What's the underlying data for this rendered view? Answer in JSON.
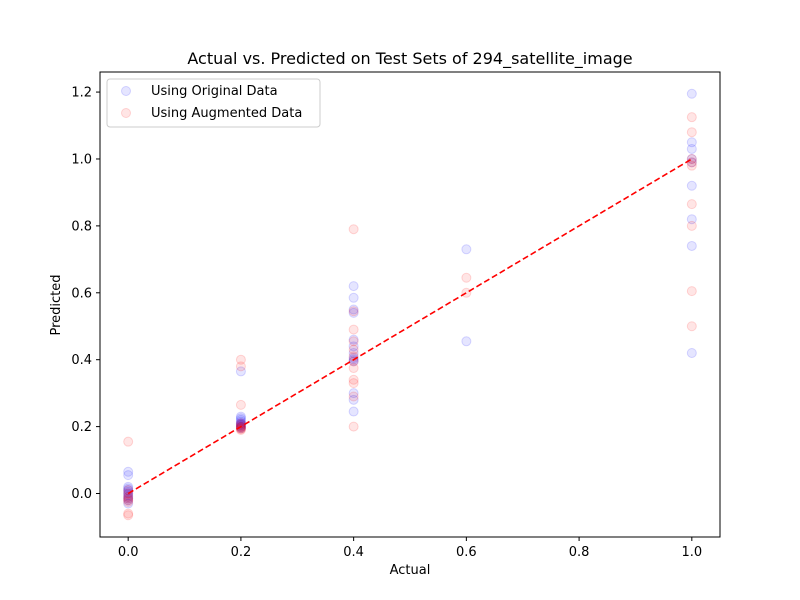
{
  "chart_data": {
    "type": "scatter",
    "title": "Actual vs. Predicted on Test Sets of 294_satellite_image",
    "xlabel": "Actual",
    "ylabel": "Predicted",
    "xlim": [
      -0.05,
      1.05
    ],
    "ylim": [
      -0.13,
      1.26
    ],
    "x_ticks": [
      "0.0",
      "0.2",
      "0.4",
      "0.6",
      "0.8",
      "1.0"
    ],
    "x_tick_values": [
      0.0,
      0.2,
      0.4,
      0.6,
      0.8,
      1.0
    ],
    "y_ticks": [
      "0.0",
      "0.2",
      "0.4",
      "0.6",
      "0.8",
      "1.0",
      "1.2"
    ],
    "y_tick_values": [
      0.0,
      0.2,
      0.4,
      0.6,
      0.8,
      1.0,
      1.2
    ],
    "grid": false,
    "legend_position": "top-left",
    "reference_line": {
      "x": [
        0.0,
        1.0
      ],
      "y": [
        0.0,
        1.0
      ],
      "color": "#ff0000",
      "style": "dashed"
    },
    "series": [
      {
        "name": "Using Original Data",
        "color": "#0000ff",
        "points": [
          [
            0.0,
            0.065
          ],
          [
            0.0,
            0.055
          ],
          [
            0.0,
            0.02
          ],
          [
            0.0,
            0.015
          ],
          [
            0.0,
            0.01
          ],
          [
            0.0,
            0.005
          ],
          [
            0.0,
            0.0
          ],
          [
            0.0,
            -0.005
          ],
          [
            0.0,
            -0.01
          ],
          [
            0.0,
            -0.015
          ],
          [
            0.0,
            -0.02
          ],
          [
            0.0,
            -0.03
          ],
          [
            0.2,
            0.365
          ],
          [
            0.2,
            0.23
          ],
          [
            0.2,
            0.225
          ],
          [
            0.2,
            0.22
          ],
          [
            0.2,
            0.215
          ],
          [
            0.2,
            0.21
          ],
          [
            0.2,
            0.208
          ],
          [
            0.2,
            0.205
          ],
          [
            0.2,
            0.203
          ],
          [
            0.2,
            0.2
          ],
          [
            0.2,
            0.198
          ],
          [
            0.2,
            0.195
          ],
          [
            0.4,
            0.62
          ],
          [
            0.4,
            0.585
          ],
          [
            0.4,
            0.55
          ],
          [
            0.4,
            0.54
          ],
          [
            0.4,
            0.46
          ],
          [
            0.4,
            0.44
          ],
          [
            0.4,
            0.42
          ],
          [
            0.4,
            0.405
          ],
          [
            0.4,
            0.4
          ],
          [
            0.4,
            0.395
          ],
          [
            0.4,
            0.3
          ],
          [
            0.4,
            0.28
          ],
          [
            0.4,
            0.245
          ],
          [
            0.6,
            0.73
          ],
          [
            0.6,
            0.455
          ],
          [
            1.0,
            1.195
          ],
          [
            1.0,
            1.05
          ],
          [
            1.0,
            1.03
          ],
          [
            1.0,
            1.0
          ],
          [
            1.0,
            0.99
          ],
          [
            1.0,
            0.92
          ],
          [
            1.0,
            0.82
          ],
          [
            1.0,
            0.74
          ],
          [
            1.0,
            0.42
          ]
        ]
      },
      {
        "name": "Using Augmented Data",
        "color": "#ff0000",
        "points": [
          [
            0.0,
            0.155
          ],
          [
            0.0,
            0.01
          ],
          [
            0.0,
            0.0
          ],
          [
            0.0,
            -0.01
          ],
          [
            0.0,
            -0.015
          ],
          [
            0.0,
            -0.02
          ],
          [
            0.0,
            -0.025
          ],
          [
            0.0,
            -0.06
          ],
          [
            0.0,
            -0.065
          ],
          [
            0.2,
            0.4
          ],
          [
            0.2,
            0.38
          ],
          [
            0.2,
            0.265
          ],
          [
            0.2,
            0.21
          ],
          [
            0.2,
            0.205
          ],
          [
            0.2,
            0.2
          ],
          [
            0.2,
            0.198
          ],
          [
            0.2,
            0.195
          ],
          [
            0.2,
            0.193
          ],
          [
            0.2,
            0.19
          ],
          [
            0.4,
            0.79
          ],
          [
            0.4,
            0.545
          ],
          [
            0.4,
            0.49
          ],
          [
            0.4,
            0.455
          ],
          [
            0.4,
            0.43
          ],
          [
            0.4,
            0.41
          ],
          [
            0.4,
            0.395
          ],
          [
            0.4,
            0.375
          ],
          [
            0.4,
            0.34
          ],
          [
            0.4,
            0.33
          ],
          [
            0.4,
            0.29
          ],
          [
            0.4,
            0.2
          ],
          [
            0.6,
            0.645
          ],
          [
            0.6,
            0.6
          ],
          [
            1.0,
            1.125
          ],
          [
            1.0,
            1.08
          ],
          [
            1.0,
            1.0
          ],
          [
            1.0,
            0.99
          ],
          [
            1.0,
            0.98
          ],
          [
            1.0,
            0.865
          ],
          [
            1.0,
            0.8
          ],
          [
            1.0,
            0.605
          ],
          [
            1.0,
            0.5
          ]
        ]
      }
    ]
  }
}
